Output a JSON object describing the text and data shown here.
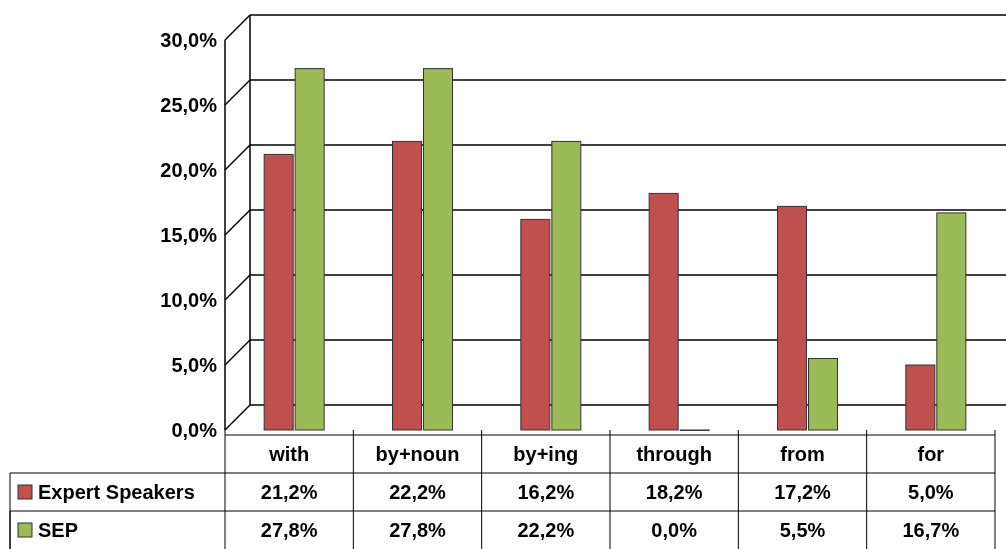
{
  "chart_data": {
    "type": "bar",
    "categories": [
      "with",
      "by+noun",
      "by+ing",
      "through",
      "from",
      "for"
    ],
    "series": [
      {
        "name": "Expert Speakers",
        "color": "#c0504d",
        "values": [
          21.2,
          22.2,
          16.2,
          18.2,
          17.2,
          5.0
        ],
        "value_labels": [
          "21,2%",
          "22,2%",
          "16,2%",
          "18,2%",
          "17,2%",
          "5,0%"
        ]
      },
      {
        "name": "SEP",
        "color": "#9bbb59",
        "values": [
          27.8,
          27.8,
          22.2,
          0.0,
          5.5,
          16.7
        ],
        "value_labels": [
          "27,8%",
          "27,8%",
          "22,2%",
          "0,0%",
          "5,5%",
          "16,7%"
        ]
      }
    ],
    "ylim": [
      0,
      30
    ],
    "yticks": [
      {
        "value": 0,
        "label": "0,0%"
      },
      {
        "value": 5,
        "label": "5,0%"
      },
      {
        "value": 10,
        "label": "10,0%"
      },
      {
        "value": 15,
        "label": "15,0%"
      },
      {
        "value": 20,
        "label": "20,0%"
      },
      {
        "value": 25,
        "label": "25,0%"
      },
      {
        "value": 30,
        "label": "30,0%"
      }
    ],
    "grid": "y",
    "legend": "bottom"
  }
}
